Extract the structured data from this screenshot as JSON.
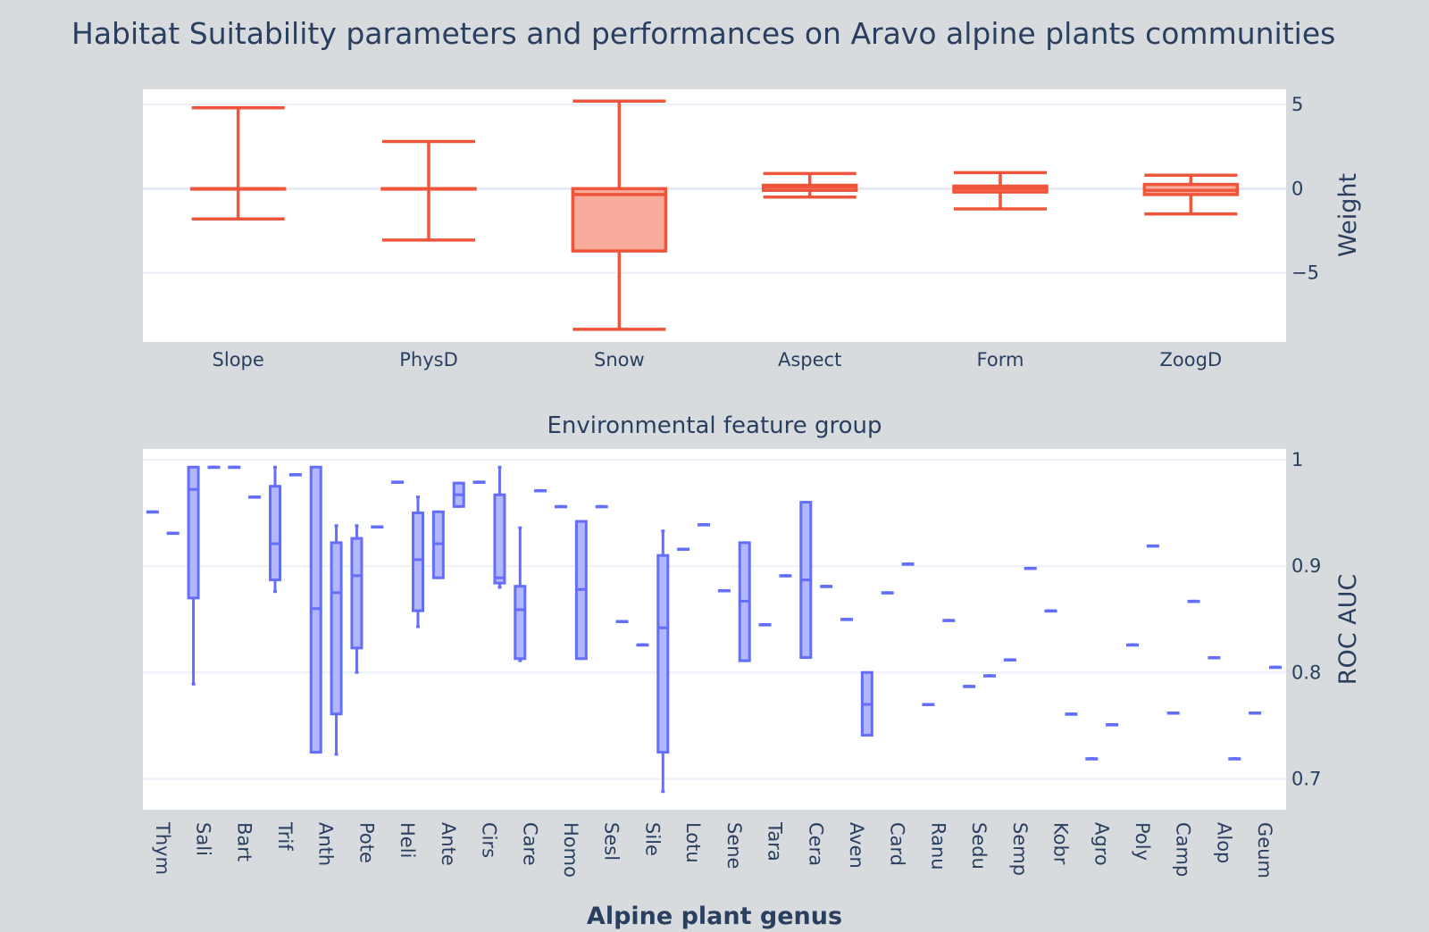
{
  "title": "Habitat Suitability parameters and performances on Aravo alpine plants communities",
  "colors": {
    "weights": "#ef553b",
    "weights_fill": "#f8aa9c",
    "auc": "#636efa",
    "auc_fill": "#b1b6fd",
    "background": "#d7dbde",
    "plot_bg": "#ffffff",
    "text": "#2a3f5f"
  },
  "chart_data": [
    {
      "type": "box",
      "xlabel": "Environmental feature group",
      "ylabel": "Weight",
      "yticks": [
        5,
        0,
        -5
      ],
      "ylim": [
        -9.1,
        5.9
      ],
      "grid": true,
      "categories": [
        "Slope",
        "PhysD",
        "Snow",
        "Aspect",
        "Form",
        "ZoogD"
      ],
      "boxes": [
        {
          "min": -1.8,
          "q1": 0,
          "median": 0,
          "q3": 0,
          "max": 4.8
        },
        {
          "min": -3.05,
          "q1": 0,
          "median": 0,
          "q3": 0,
          "max": 2.8
        },
        {
          "min": -8.35,
          "q1": -3.7,
          "median": -0.35,
          "q3": 0,
          "max": 5.2
        },
        {
          "min": -0.5,
          "q1": -0.1,
          "median": 0.1,
          "q3": 0.2,
          "max": 0.9
        },
        {
          "min": -1.2,
          "q1": -0.2,
          "median": 0,
          "q3": 0.15,
          "max": 0.95
        },
        {
          "min": -1.5,
          "q1": -0.35,
          "median": -0.1,
          "q3": 0.25,
          "max": 0.8
        }
      ]
    },
    {
      "type": "box",
      "xlabel": "Alpine plant genus",
      "ylabel": "ROC AUC",
      "yticks": [
        1,
        0.9,
        0.8,
        0.7
      ],
      "ylim": [
        0.671,
        1.01
      ],
      "grid": true,
      "categories": [
        "Thym",
        "Sali",
        "Bart",
        "Trif",
        "Anth",
        "Pote",
        "Heli",
        "Ante",
        "Cirs",
        "Care",
        "Homo",
        "Sesl",
        "Sile",
        "Lotu",
        "Sene",
        "Tara",
        "Cera",
        "Aven",
        "Card",
        "Ranu",
        "Sedu",
        "Semp",
        "Kobr",
        "Agro",
        "Poly",
        "Camp",
        "Alop",
        "Geum"
      ],
      "boxes": [
        {
          "pos": 0,
          "min": 0.951,
          "q1": 0.951,
          "median": 0.951,
          "q3": 0.951,
          "max": 0.951
        },
        {
          "pos": 0.5,
          "min": 0.931,
          "q1": 0.931,
          "median": 0.931,
          "q3": 0.931,
          "max": 0.931
        },
        {
          "pos": 1,
          "min": 0.789,
          "q1": 0.87,
          "median": 0.972,
          "q3": 0.993,
          "max": 0.993
        },
        {
          "pos": 1.5,
          "min": 0.993,
          "q1": 0.993,
          "median": 0.993,
          "q3": 0.993,
          "max": 0.993
        },
        {
          "pos": 2,
          "min": 0.993,
          "q1": 0.993,
          "median": 0.993,
          "q3": 0.993,
          "max": 0.993
        },
        {
          "pos": 2.5,
          "min": 0.965,
          "q1": 0.965,
          "median": 0.965,
          "q3": 0.965,
          "max": 0.965
        },
        {
          "pos": 3,
          "min": 0.876,
          "q1": 0.887,
          "median": 0.921,
          "q3": 0.975,
          "max": 0.993
        },
        {
          "pos": 3.5,
          "min": 0.986,
          "q1": 0.986,
          "median": 0.986,
          "q3": 0.986,
          "max": 0.986
        },
        {
          "pos": 4,
          "min": 0.725,
          "q1": 0.725,
          "median": 0.86,
          "q3": 0.993,
          "max": 0.993
        },
        {
          "pos": 4.5,
          "min": 0.723,
          "q1": 0.761,
          "median": 0.875,
          "q3": 0.922,
          "max": 0.938
        },
        {
          "pos": 5,
          "min": 0.8,
          "q1": 0.823,
          "median": 0.891,
          "q3": 0.926,
          "max": 0.938
        },
        {
          "pos": 5.5,
          "min": 0.937,
          "q1": 0.937,
          "median": 0.937,
          "q3": 0.937,
          "max": 0.937
        },
        {
          "pos": 6,
          "min": 0.979,
          "q1": 0.979,
          "median": 0.979,
          "q3": 0.979,
          "max": 0.979
        },
        {
          "pos": 6.5,
          "min": 0.843,
          "q1": 0.858,
          "median": 0.906,
          "q3": 0.95,
          "max": 0.965
        },
        {
          "pos": 7,
          "min": 0.889,
          "q1": 0.889,
          "median": 0.921,
          "q3": 0.951,
          "max": 0.951
        },
        {
          "pos": 7.5,
          "min": 0.956,
          "q1": 0.956,
          "median": 0.967,
          "q3": 0.978,
          "max": 0.978
        },
        {
          "pos": 8,
          "min": 0.979,
          "q1": 0.979,
          "median": 0.979,
          "q3": 0.979,
          "max": 0.979
        },
        {
          "pos": 8.5,
          "min": 0.88,
          "q1": 0.884,
          "median": 0.889,
          "q3": 0.967,
          "max": 0.993
        },
        {
          "pos": 9,
          "min": 0.811,
          "q1": 0.813,
          "median": 0.859,
          "q3": 0.881,
          "max": 0.936
        },
        {
          "pos": 9.5,
          "min": 0.971,
          "q1": 0.971,
          "median": 0.971,
          "q3": 0.971,
          "max": 0.971
        },
        {
          "pos": 10,
          "min": 0.956,
          "q1": 0.956,
          "median": 0.956,
          "q3": 0.956,
          "max": 0.956
        },
        {
          "pos": 10.5,
          "min": 0.813,
          "q1": 0.813,
          "median": 0.878,
          "q3": 0.942,
          "max": 0.942
        },
        {
          "pos": 11,
          "min": 0.956,
          "q1": 0.956,
          "median": 0.956,
          "q3": 0.956,
          "max": 0.956
        },
        {
          "pos": 11.5,
          "min": 0.848,
          "q1": 0.848,
          "median": 0.848,
          "q3": 0.848,
          "max": 0.848
        },
        {
          "pos": 12,
          "min": 0.826,
          "q1": 0.826,
          "median": 0.826,
          "q3": 0.826,
          "max": 0.826
        },
        {
          "pos": 12.5,
          "min": 0.688,
          "q1": 0.725,
          "median": 0.842,
          "q3": 0.91,
          "max": 0.933
        },
        {
          "pos": 13,
          "min": 0.916,
          "q1": 0.916,
          "median": 0.916,
          "q3": 0.916,
          "max": 0.916
        },
        {
          "pos": 13.5,
          "min": 0.939,
          "q1": 0.939,
          "median": 0.939,
          "q3": 0.939,
          "max": 0.939
        },
        {
          "pos": 14,
          "min": 0.877,
          "q1": 0.877,
          "median": 0.877,
          "q3": 0.877,
          "max": 0.877
        },
        {
          "pos": 14.5,
          "min": 0.811,
          "q1": 0.811,
          "median": 0.867,
          "q3": 0.922,
          "max": 0.922
        },
        {
          "pos": 15,
          "min": 0.845,
          "q1": 0.845,
          "median": 0.845,
          "q3": 0.845,
          "max": 0.845
        },
        {
          "pos": 15.5,
          "min": 0.891,
          "q1": 0.891,
          "median": 0.891,
          "q3": 0.891,
          "max": 0.891
        },
        {
          "pos": 16,
          "min": 0.814,
          "q1": 0.814,
          "median": 0.887,
          "q3": 0.96,
          "max": 0.96
        },
        {
          "pos": 16.5,
          "min": 0.881,
          "q1": 0.881,
          "median": 0.881,
          "q3": 0.881,
          "max": 0.881
        },
        {
          "pos": 17,
          "min": 0.85,
          "q1": 0.85,
          "median": 0.85,
          "q3": 0.85,
          "max": 0.85
        },
        {
          "pos": 17.5,
          "min": 0.741,
          "q1": 0.741,
          "median": 0.77,
          "q3": 0.8,
          "max": 0.8
        },
        {
          "pos": 18,
          "min": 0.875,
          "q1": 0.875,
          "median": 0.875,
          "q3": 0.875,
          "max": 0.875
        },
        {
          "pos": 18.5,
          "min": 0.902,
          "q1": 0.902,
          "median": 0.902,
          "q3": 0.902,
          "max": 0.902
        },
        {
          "pos": 19,
          "min": 0.77,
          "q1": 0.77,
          "median": 0.77,
          "q3": 0.77,
          "max": 0.77
        },
        {
          "pos": 19.5,
          "min": 0.849,
          "q1": 0.849,
          "median": 0.849,
          "q3": 0.849,
          "max": 0.849
        },
        {
          "pos": 20,
          "min": 0.787,
          "q1": 0.787,
          "median": 0.787,
          "q3": 0.787,
          "max": 0.787
        },
        {
          "pos": 20.5,
          "min": 0.797,
          "q1": 0.797,
          "median": 0.797,
          "q3": 0.797,
          "max": 0.797
        },
        {
          "pos": 21,
          "min": 0.812,
          "q1": 0.812,
          "median": 0.812,
          "q3": 0.812,
          "max": 0.812
        },
        {
          "pos": 21.5,
          "min": 0.898,
          "q1": 0.898,
          "median": 0.898,
          "q3": 0.898,
          "max": 0.898
        },
        {
          "pos": 22,
          "min": 0.858,
          "q1": 0.858,
          "median": 0.858,
          "q3": 0.858,
          "max": 0.858
        },
        {
          "pos": 22.5,
          "min": 0.761,
          "q1": 0.761,
          "median": 0.761,
          "q3": 0.761,
          "max": 0.761
        },
        {
          "pos": 23,
          "min": 0.719,
          "q1": 0.719,
          "median": 0.719,
          "q3": 0.719,
          "max": 0.719
        },
        {
          "pos": 23.5,
          "min": 0.751,
          "q1": 0.751,
          "median": 0.751,
          "q3": 0.751,
          "max": 0.751
        },
        {
          "pos": 24,
          "min": 0.826,
          "q1": 0.826,
          "median": 0.826,
          "q3": 0.826,
          "max": 0.826
        },
        {
          "pos": 24.5,
          "min": 0.919,
          "q1": 0.919,
          "median": 0.919,
          "q3": 0.919,
          "max": 0.919
        },
        {
          "pos": 25,
          "min": 0.762,
          "q1": 0.762,
          "median": 0.762,
          "q3": 0.762,
          "max": 0.762
        },
        {
          "pos": 25.5,
          "min": 0.867,
          "q1": 0.867,
          "median": 0.867,
          "q3": 0.867,
          "max": 0.867
        },
        {
          "pos": 26,
          "min": 0.814,
          "q1": 0.814,
          "median": 0.814,
          "q3": 0.814,
          "max": 0.814
        },
        {
          "pos": 26.5,
          "min": 0.719,
          "q1": 0.719,
          "median": 0.719,
          "q3": 0.719,
          "max": 0.719
        },
        {
          "pos": 27,
          "min": 0.762,
          "q1": 0.762,
          "median": 0.762,
          "q3": 0.762,
          "max": 0.762
        },
        {
          "pos": 27.5,
          "min": 0.805,
          "q1": 0.805,
          "median": 0.805,
          "q3": 0.805,
          "max": 0.805
        }
      ]
    }
  ]
}
